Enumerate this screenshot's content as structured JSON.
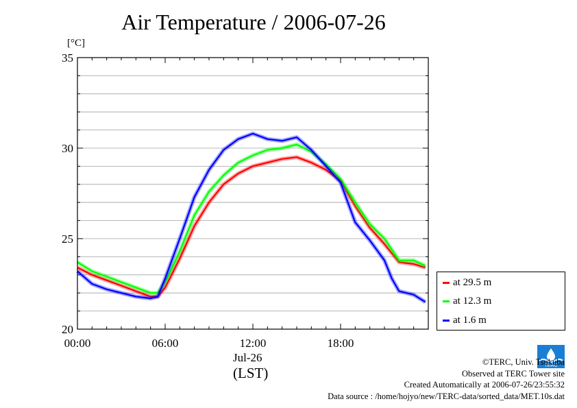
{
  "chart_data": {
    "type": "line",
    "title": "Air Temperature / 2006-07-26",
    "ylabel": "[°C]",
    "xlabel_date": "Jul-26",
    "xlabel_tz": "(LST)",
    "xlim": [
      0,
      24
    ],
    "ylim": [
      20,
      35
    ],
    "xticks": [
      {
        "value": 0,
        "label": "00:00"
      },
      {
        "value": 6,
        "label": "06:00"
      },
      {
        "value": 12,
        "label": "12:00"
      },
      {
        "value": 18,
        "label": "18:00"
      }
    ],
    "yticks": [
      20,
      25,
      30,
      35
    ],
    "grid": true,
    "legend_position": "right",
    "series": [
      {
        "name": "at 29.5 m",
        "color": "#ff0000",
        "x": [
          0,
          1,
          2,
          3,
          4,
          5,
          5.5,
          6,
          7,
          8,
          9,
          10,
          11,
          12,
          13,
          14,
          15,
          16,
          17,
          18,
          19,
          20,
          21,
          22,
          23,
          23.8
        ],
        "y": [
          23.4,
          23.0,
          22.7,
          22.4,
          22.1,
          21.8,
          21.8,
          22.3,
          23.9,
          25.7,
          27.0,
          28.0,
          28.6,
          29.0,
          29.2,
          29.4,
          29.5,
          29.2,
          28.8,
          28.2,
          26.8,
          25.6,
          24.7,
          23.7,
          23.6,
          23.4
        ]
      },
      {
        "name": "at 12.3 m",
        "color": "#00ff00",
        "x": [
          0,
          1,
          2,
          3,
          4,
          5,
          5.5,
          6,
          7,
          8,
          9,
          10,
          11,
          12,
          13,
          14,
          15,
          16,
          17,
          18,
          19,
          20,
          21,
          22,
          23,
          23.8
        ],
        "y": [
          23.7,
          23.2,
          22.9,
          22.6,
          22.3,
          22.0,
          22.0,
          22.6,
          24.3,
          26.3,
          27.6,
          28.5,
          29.2,
          29.6,
          29.9,
          30.0,
          30.2,
          29.8,
          29.1,
          28.3,
          27.0,
          25.8,
          25.0,
          23.8,
          23.8,
          23.5
        ]
      },
      {
        "name": "at 1.6 m",
        "color": "#0000ff",
        "x": [
          0,
          1,
          2,
          3,
          4,
          5,
          5.5,
          6,
          7,
          8,
          9,
          10,
          11,
          12,
          13,
          14,
          15,
          16,
          17,
          18,
          19,
          20,
          21,
          21.5,
          22,
          23,
          23.8
        ],
        "y": [
          23.2,
          22.5,
          22.2,
          22.0,
          21.8,
          21.7,
          21.8,
          22.8,
          25.0,
          27.3,
          28.8,
          29.9,
          30.5,
          30.8,
          30.5,
          30.4,
          30.6,
          29.9,
          29.0,
          28.1,
          25.9,
          24.9,
          23.8,
          22.8,
          22.1,
          21.9,
          21.5
        ]
      }
    ]
  },
  "credits": {
    "copyright": "©TERC, Univ. Tsukuba",
    "site": "Observed at TERC Tower site",
    "created": "Created Automatically at 2006-07-26/23:55:32",
    "source": "Data source : /home/hojyo/new/TERC-data/sorted_data/MET.10s.dat"
  },
  "logo": {
    "text": "TERC",
    "color": "#1a7fd4"
  }
}
